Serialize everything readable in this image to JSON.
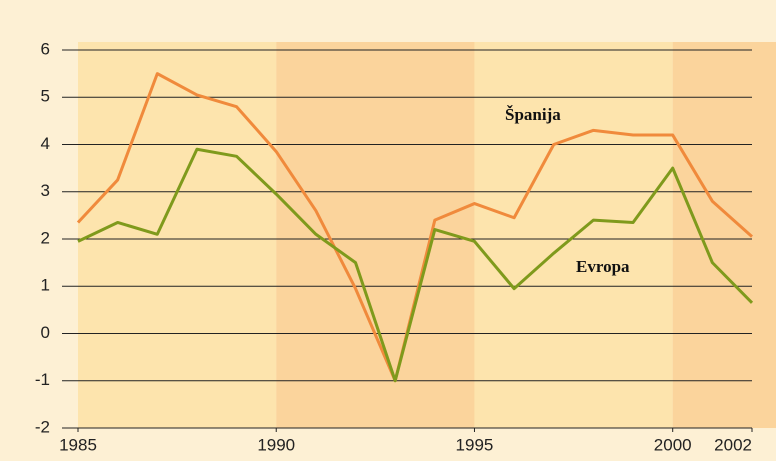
{
  "chart_data": {
    "type": "line",
    "x": [
      1985,
      1986,
      1987,
      1988,
      1989,
      1990,
      1991,
      1992,
      1993,
      1994,
      1995,
      1996,
      1997,
      1998,
      1999,
      2000,
      2001,
      2002
    ],
    "series": [
      {
        "name": "Španija",
        "color": "#f08a3c",
        "values": [
          2.35,
          3.25,
          5.5,
          5.05,
          4.8,
          3.85,
          2.6,
          0.95,
          -1.0,
          2.4,
          2.75,
          2.45,
          4.0,
          4.3,
          4.2,
          4.2,
          2.8,
          2.05
        ]
      },
      {
        "name": "Evropa",
        "color": "#7f9a1c",
        "values": [
          1.95,
          2.35,
          2.1,
          3.9,
          3.75,
          2.95,
          2.1,
          1.5,
          -1.0,
          2.2,
          1.95,
          0.95,
          1.7,
          2.4,
          2.35,
          3.5,
          1.5,
          0.65
        ]
      }
    ],
    "xlim": [
      1985,
      2002
    ],
    "xticks": [
      1985,
      1990,
      1995,
      2000,
      2002
    ],
    "ylim": [
      -2,
      6
    ],
    "yticks": [
      -2,
      -1,
      0,
      1,
      2,
      3,
      4,
      5,
      6
    ],
    "grid": true
  }
}
